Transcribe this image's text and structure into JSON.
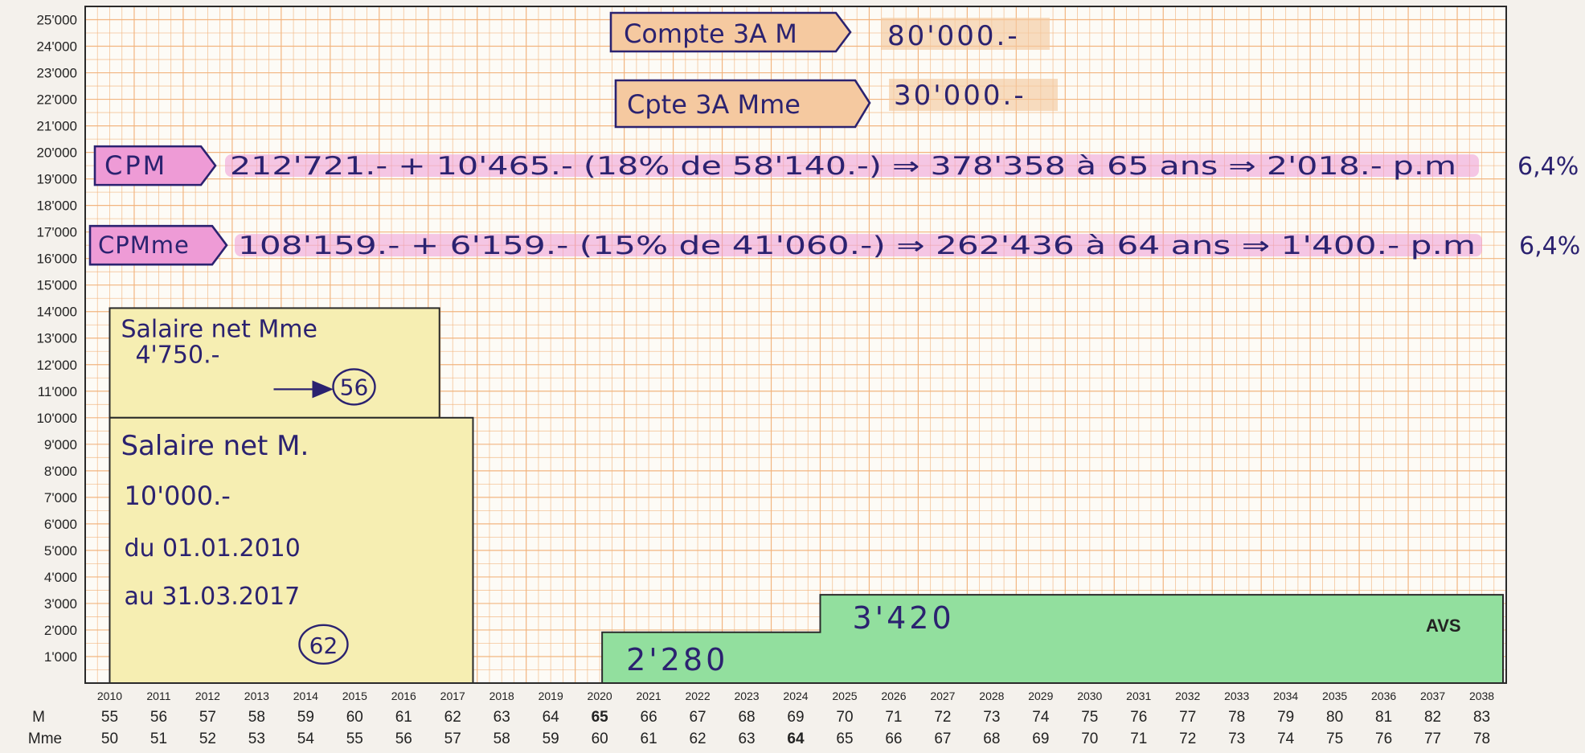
{
  "chart_data": {
    "type": "area",
    "y_ticks": [
      "1'000",
      "2'000",
      "3'000",
      "4'000",
      "5'000",
      "6'000",
      "7'000",
      "8'000",
      "9'000",
      "10'000",
      "11'000",
      "12'000",
      "13'000",
      "14'000",
      "15'000",
      "16'000",
      "17'000",
      "18'000",
      "19'000",
      "20'000",
      "21'000",
      "22'000",
      "23'000",
      "24'000",
      "25'000"
    ],
    "ylim": [
      0,
      25500
    ],
    "years": [
      "2010",
      "2011",
      "2012",
      "2013",
      "2014",
      "2015",
      "2016",
      "2017",
      "2018",
      "2019",
      "2020",
      "2021",
      "2022",
      "2023",
      "2024",
      "2025",
      "2026",
      "2027",
      "2028",
      "2029",
      "2030",
      "2031",
      "2032",
      "2033",
      "2034",
      "2035",
      "2036",
      "2037",
      "2038"
    ],
    "age_rows": [
      {
        "label": "M",
        "ages": [
          "55",
          "56",
          "57",
          "58",
          "59",
          "60",
          "61",
          "62",
          "63",
          "64",
          "65",
          "66",
          "67",
          "68",
          "69",
          "70",
          "71",
          "72",
          "73",
          "74",
          "75",
          "76",
          "77",
          "78",
          "79",
          "80",
          "81",
          "82",
          "83"
        ],
        "bold_index": 10
      },
      {
        "label": "Mme",
        "ages": [
          "50",
          "51",
          "52",
          "53",
          "54",
          "55",
          "56",
          "57",
          "58",
          "59",
          "60",
          "61",
          "62",
          "63",
          "64",
          "65",
          "66",
          "67",
          "68",
          "69",
          "70",
          "71",
          "72",
          "73",
          "74",
          "75",
          "76",
          "77",
          "78"
        ],
        "bold_index": 14
      }
    ],
    "series": [
      {
        "label_lines": [
          "Salaire net M.",
          "10'000.-",
          "du 01.01.2010",
          "au 31.03.2017"
        ],
        "circle": "62",
        "value": 10000,
        "x_start": 2010,
        "x_end": 2017.25,
        "color": "#f6eeb2"
      },
      {
        "label_lines": [
          "Salaire net Mme",
          "4'750.-"
        ],
        "circle": "56",
        "value": 4750,
        "x_start": 2010,
        "x_end": 2016.5,
        "color": "#f6eeb2"
      },
      {
        "label": "2'280",
        "value": 2280,
        "x_start": 2020,
        "x_end": 2024.5,
        "color": "#92df9e"
      },
      {
        "label": "3'420",
        "value": 3420,
        "x_start": 2024.5,
        "x_end": 2038.5,
        "color": "#92df9e"
      }
    ],
    "avs_label": "AVS",
    "annotations": {
      "compte_m": {
        "label": "Compte 3A M",
        "value": "80'000.-"
      },
      "compte_mme": {
        "label": "Cpte 3A Mme",
        "value": "30'000.-"
      },
      "cpm": {
        "label": "CPM",
        "text": "212'721.- + 10'465.- (18% de 58'140.-) ⇒ 378'358 à 65 ans ⇒ 2'018.- p.m",
        "rate": "6,4%"
      },
      "cpmme": {
        "label": "CPMme",
        "text": "108'159.- + 6'159.- (15% de 41'060.-) ⇒ 262'436 à 64 ans ⇒ 1'400.- p.m",
        "rate": "6,4%"
      }
    },
    "grid": true,
    "colors": {
      "grid": "#f2b27a",
      "paper": "#fdfbf6",
      "ink": "#2b2270",
      "highlight": "#ee9bd6",
      "box_fill": "#f5c9a0",
      "year_2010": "#3f5fae",
      "age_first": "#5670b8"
    }
  }
}
